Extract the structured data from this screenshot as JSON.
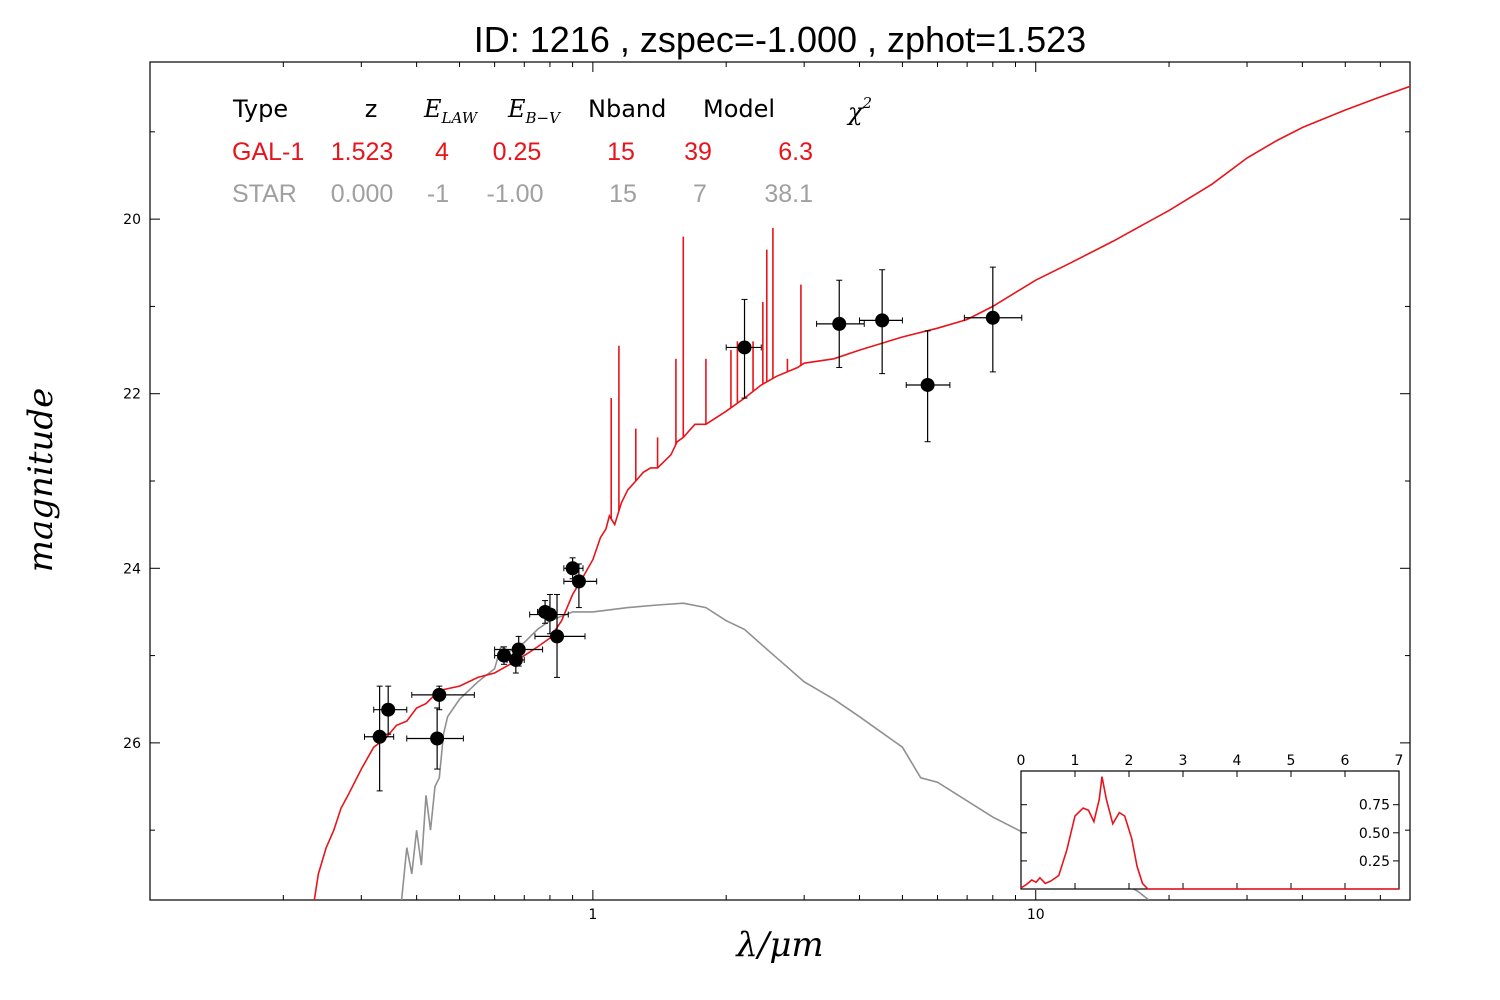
{
  "title": "ID:  1216  , zspec=-1.000 , zphot=1.523",
  "colors": {
    "galaxy": "#e8141b",
    "star": "#909090",
    "point": "#000000"
  },
  "table": {
    "headers": {
      "type": "Type",
      "z": "z",
      "elaw_main": "E",
      "elaw_sub": "LAW",
      "ebv_main": "E",
      "ebv_sub": "B−V",
      "nband": "Nband",
      "model": "Model",
      "chi_main": "χ",
      "chi_sup": "2"
    },
    "rows": [
      {
        "type": "GAL-1",
        "z": "1.523",
        "elaw": "4",
        "ebv": "0.25",
        "nband": "15",
        "model": "39",
        "chi2": "6.3",
        "color": "#e8141b"
      },
      {
        "type": "STAR",
        "z": "0.000",
        "elaw": "-1",
        "ebv": "-1.00",
        "nband": "15",
        "model": "7",
        "chi2": "38.1",
        "color": "#a0a0a0"
      }
    ]
  },
  "chart_data": [
    {
      "type": "line",
      "xlabel": "λ/μm",
      "ylabel": "magnitude",
      "xscale": "log",
      "xlim": [
        0.1,
        70
      ],
      "ylim": [
        27.8,
        18.2
      ],
      "y_inverted": true,
      "xticks": [
        {
          "v": 1,
          "label": "1"
        },
        {
          "v": 10,
          "label": "10"
        }
      ],
      "yticks": [
        {
          "v": 20,
          "label": "20"
        },
        {
          "v": 22,
          "label": "22"
        },
        {
          "v": 24,
          "label": "24"
        },
        {
          "v": 26,
          "label": "26"
        }
      ],
      "series": [
        {
          "id": "galaxy",
          "color": "#e8141b",
          "points": [
            [
              0.235,
              27.8
            ],
            [
              0.24,
              27.5
            ],
            [
              0.25,
              27.2
            ],
            [
              0.26,
              27.0
            ],
            [
              0.27,
              26.75
            ],
            [
              0.28,
              26.6
            ],
            [
              0.3,
              26.3
            ],
            [
              0.32,
              26.05
            ],
            [
              0.34,
              25.95
            ],
            [
              0.36,
              25.8
            ],
            [
              0.38,
              25.75
            ],
            [
              0.4,
              25.6
            ],
            [
              0.42,
              25.55
            ],
            [
              0.45,
              25.4
            ],
            [
              0.5,
              25.35
            ],
            [
              0.55,
              25.25
            ],
            [
              0.6,
              25.2
            ],
            [
              0.65,
              25.1
            ],
            [
              0.7,
              25.0
            ],
            [
              0.75,
              24.9
            ],
            [
              0.8,
              24.8
            ],
            [
              0.85,
              24.6
            ],
            [
              0.9,
              24.3
            ],
            [
              0.95,
              24.1
            ],
            [
              1.0,
              23.9
            ],
            [
              1.04,
              23.65
            ],
            [
              1.07,
              23.55
            ],
            [
              1.09,
              23.4
            ],
            [
              1.12,
              23.5
            ],
            [
              1.16,
              23.25
            ],
            [
              1.2,
              23.1
            ],
            [
              1.25,
              23.0
            ],
            [
              1.3,
              22.9
            ],
            [
              1.35,
              22.85
            ],
            [
              1.4,
              22.85
            ],
            [
              1.5,
              22.7
            ],
            [
              1.55,
              22.55
            ],
            [
              1.6,
              22.5
            ],
            [
              1.7,
              22.35
            ],
            [
              1.8,
              22.35
            ],
            [
              2.0,
              22.2
            ],
            [
              2.2,
              22.05
            ],
            [
              2.4,
              21.9
            ],
            [
              2.6,
              21.8
            ],
            [
              2.9,
              21.7
            ],
            [
              3.0,
              21.65
            ],
            [
              3.5,
              21.6
            ],
            [
              4.0,
              21.5
            ],
            [
              5.0,
              21.35
            ],
            [
              6.0,
              21.25
            ],
            [
              7.0,
              21.15
            ],
            [
              8.0,
              21.0
            ],
            [
              10.0,
              20.7
            ],
            [
              12.0,
              20.5
            ],
            [
              15.0,
              20.25
            ],
            [
              20.0,
              19.9
            ],
            [
              25.0,
              19.6
            ],
            [
              30.0,
              19.3
            ],
            [
              35.0,
              19.1
            ],
            [
              40.0,
              18.95
            ],
            [
              50.0,
              18.75
            ],
            [
              60.0,
              18.6
            ],
            [
              70.0,
              18.48
            ]
          ]
        },
        {
          "id": "star",
          "color": "#909090",
          "points": [
            [
              0.37,
              27.8
            ],
            [
              0.38,
              27.2
            ],
            [
              0.39,
              27.5
            ],
            [
              0.4,
              27.0
            ],
            [
              0.41,
              27.4
            ],
            [
              0.42,
              26.6
            ],
            [
              0.43,
              27.0
            ],
            [
              0.44,
              26.5
            ],
            [
              0.45,
              26.4
            ],
            [
              0.46,
              25.9
            ],
            [
              0.47,
              25.7
            ],
            [
              0.5,
              25.5
            ],
            [
              0.55,
              25.3
            ],
            [
              0.6,
              25.15
            ],
            [
              0.62,
              24.9
            ],
            [
              0.65,
              24.95
            ],
            [
              0.7,
              24.85
            ],
            [
              0.75,
              24.7
            ],
            [
              0.8,
              24.6
            ],
            [
              0.85,
              24.55
            ],
            [
              0.9,
              24.5
            ],
            [
              1.0,
              24.5
            ],
            [
              1.2,
              24.45
            ],
            [
              1.4,
              24.42
            ],
            [
              1.6,
              24.4
            ],
            [
              1.8,
              24.45
            ],
            [
              2.0,
              24.6
            ],
            [
              2.2,
              24.7
            ],
            [
              2.5,
              24.95
            ],
            [
              3.0,
              25.3
            ],
            [
              3.5,
              25.5
            ],
            [
              4.0,
              25.7
            ],
            [
              5.0,
              26.05
            ],
            [
              5.5,
              26.4
            ],
            [
              6.0,
              26.45
            ],
            [
              8.0,
              26.85
            ],
            [
              10.0,
              27.1
            ],
            [
              12.0,
              27.3
            ],
            [
              15.0,
              27.55
            ],
            [
              17.0,
              27.7
            ],
            [
              18.0,
              27.8
            ]
          ]
        }
      ],
      "lines": [
        {
          "x": 1.1,
          "y_top": 22.05
        },
        {
          "x": 1.145,
          "y_top": 21.45
        },
        {
          "x": 1.25,
          "y_top": 22.4
        },
        {
          "x": 1.4,
          "y_top": 22.5
        },
        {
          "x": 1.54,
          "y_top": 21.6
        },
        {
          "x": 1.6,
          "y_top": 20.2
        },
        {
          "x": 1.8,
          "y_top": 21.6
        },
        {
          "x": 2.05,
          "y_top": 21.5
        },
        {
          "x": 2.12,
          "y_top": 21.4
        },
        {
          "x": 2.3,
          "y_top": 21.4
        },
        {
          "x": 2.42,
          "y_top": 20.95
        },
        {
          "x": 2.47,
          "y_top": 20.35
        },
        {
          "x": 2.55,
          "y_top": 20.1
        },
        {
          "x": 2.75,
          "y_top": 21.6
        },
        {
          "x": 2.95,
          "y_top": 20.75
        }
      ],
      "points": [
        {
          "x": 0.33,
          "y": 25.93,
          "xerr": [
            0.305,
            0.355
          ],
          "yerr": [
            25.35,
            26.55
          ]
        },
        {
          "x": 0.345,
          "y": 25.62,
          "xerr": [
            0.32,
            0.38
          ],
          "yerr": [
            25.35,
            25.9
          ]
        },
        {
          "x": 0.45,
          "y": 25.45,
          "xerr": [
            0.39,
            0.54
          ],
          "yerr": [
            25.35,
            25.62
          ]
        },
        {
          "x": 0.445,
          "y": 25.95,
          "xerr": [
            0.38,
            0.51
          ],
          "yerr": [
            25.6,
            26.3
          ]
        },
        {
          "x": 0.63,
          "y": 25.0,
          "xerr": [
            0.6,
            0.66
          ],
          "yerr": [
            24.9,
            25.1
          ]
        },
        {
          "x": 0.67,
          "y": 25.05,
          "xerr": [
            0.64,
            0.7
          ],
          "yerr": [
            24.9,
            25.2
          ]
        },
        {
          "x": 0.68,
          "y": 24.93,
          "xerr": [
            0.6,
            0.77
          ],
          "yerr": [
            24.78,
            25.12
          ]
        },
        {
          "x": 0.78,
          "y": 24.5,
          "xerr": [
            0.75,
            0.82
          ],
          "yerr": [
            24.37,
            24.63
          ]
        },
        {
          "x": 0.8,
          "y": 24.53,
          "xerr": [
            0.72,
            0.88
          ],
          "yerr": [
            24.3,
            24.75
          ]
        },
        {
          "x": 0.83,
          "y": 24.78,
          "xerr": [
            0.74,
            0.96
          ],
          "yerr": [
            24.3,
            25.25
          ]
        },
        {
          "x": 0.9,
          "y": 24.0,
          "xerr": [
            0.86,
            0.95
          ],
          "yerr": [
            23.88,
            24.12
          ]
        },
        {
          "x": 0.93,
          "y": 24.15,
          "xerr": [
            0.86,
            1.02
          ],
          "yerr": [
            23.95,
            24.45
          ]
        },
        {
          "x": 2.2,
          "y": 21.47,
          "xerr": [
            2.0,
            2.4
          ],
          "yerr": [
            20.92,
            22.05
          ]
        },
        {
          "x": 3.6,
          "y": 21.2,
          "xerr": [
            3.2,
            4.1
          ],
          "yerr": [
            20.7,
            21.7
          ]
        },
        {
          "x": 4.5,
          "y": 21.16,
          "xerr": [
            4.0,
            5.0
          ],
          "yerr": [
            20.58,
            21.77
          ]
        },
        {
          "x": 5.7,
          "y": 21.9,
          "xerr": [
            5.1,
            6.4
          ],
          "yerr": [
            21.28,
            22.55
          ]
        },
        {
          "x": 8.0,
          "y": 21.13,
          "xerr": [
            6.9,
            9.3
          ],
          "yerr": [
            20.55,
            21.75
          ]
        }
      ]
    },
    {
      "type": "line",
      "xlim": [
        0,
        7
      ],
      "ylim": [
        0,
        1.05
      ],
      "xticks": [
        0,
        1,
        2,
        3,
        4,
        5,
        6,
        7
      ],
      "yticks": [
        {
          "v": 0.25,
          "label": "0.25"
        },
        {
          "v": 0.5,
          "label": "0.50"
        },
        {
          "v": 0.75,
          "label": "0.75"
        }
      ],
      "series": [
        {
          "id": "pdz",
          "color": "#e8141b",
          "points": [
            [
              0,
              0.01
            ],
            [
              0.1,
              0.04
            ],
            [
              0.2,
              0.08
            ],
            [
              0.28,
              0.06
            ],
            [
              0.35,
              0.1
            ],
            [
              0.45,
              0.05
            ],
            [
              0.55,
              0.07
            ],
            [
              0.7,
              0.12
            ],
            [
              0.85,
              0.35
            ],
            [
              1.0,
              0.65
            ],
            [
              1.15,
              0.72
            ],
            [
              1.25,
              0.7
            ],
            [
              1.35,
              0.6
            ],
            [
              1.45,
              0.8
            ],
            [
              1.5,
              1.0
            ],
            [
              1.58,
              0.8
            ],
            [
              1.7,
              0.58
            ],
            [
              1.82,
              0.68
            ],
            [
              1.92,
              0.65
            ],
            [
              2.05,
              0.45
            ],
            [
              2.15,
              0.2
            ],
            [
              2.25,
              0.05
            ],
            [
              2.35,
              0.0
            ],
            [
              3.0,
              0.0
            ],
            [
              4.0,
              0.0
            ],
            [
              5.0,
              0.0
            ],
            [
              6.0,
              0.0
            ],
            [
              7.0,
              0.0
            ]
          ]
        }
      ]
    }
  ]
}
